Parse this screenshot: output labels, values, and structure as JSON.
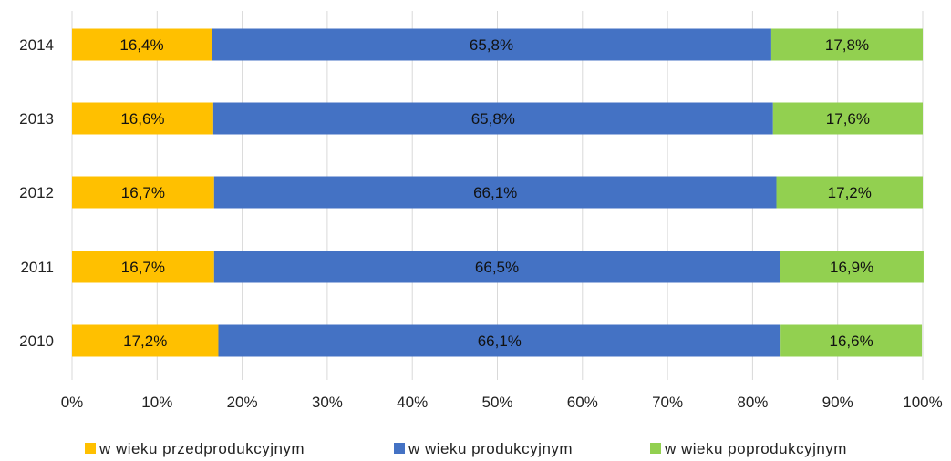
{
  "chart_data": {
    "type": "bar",
    "orientation": "horizontal",
    "stacked": "percent",
    "categories": [
      "2014",
      "2013",
      "2012",
      "2011",
      "2010"
    ],
    "series": [
      {
        "name": "w wieku przedprodukcyjnym",
        "color": "#FFC000",
        "values": [
          16.4,
          16.6,
          16.7,
          16.7,
          17.2
        ],
        "labels": [
          "16,4%",
          "16,6%",
          "16,7%",
          "16,7%",
          "17,2%"
        ]
      },
      {
        "name": "w wieku produkcyjnym",
        "color": "#4472C4",
        "values": [
          65.8,
          65.8,
          66.1,
          66.5,
          66.1
        ],
        "labels": [
          "65,8%",
          "65,8%",
          "66,1%",
          "66,5%",
          "66,1%"
        ]
      },
      {
        "name": "w wieku poprodukcyjnym",
        "color": "#92D050",
        "values": [
          17.8,
          17.6,
          17.2,
          16.9,
          16.6
        ],
        "labels": [
          "17,8%",
          "17,6%",
          "17,2%",
          "16,9%",
          "16,6%"
        ]
      }
    ],
    "xlim": [
      0,
      100
    ],
    "xticks": [
      "0%",
      "10%",
      "20%",
      "30%",
      "40%",
      "50%",
      "60%",
      "70%",
      "80%",
      "90%",
      "100%"
    ],
    "gridlines": "vertical",
    "gridline_color": "#D9D9D9",
    "legend_position": "bottom"
  }
}
